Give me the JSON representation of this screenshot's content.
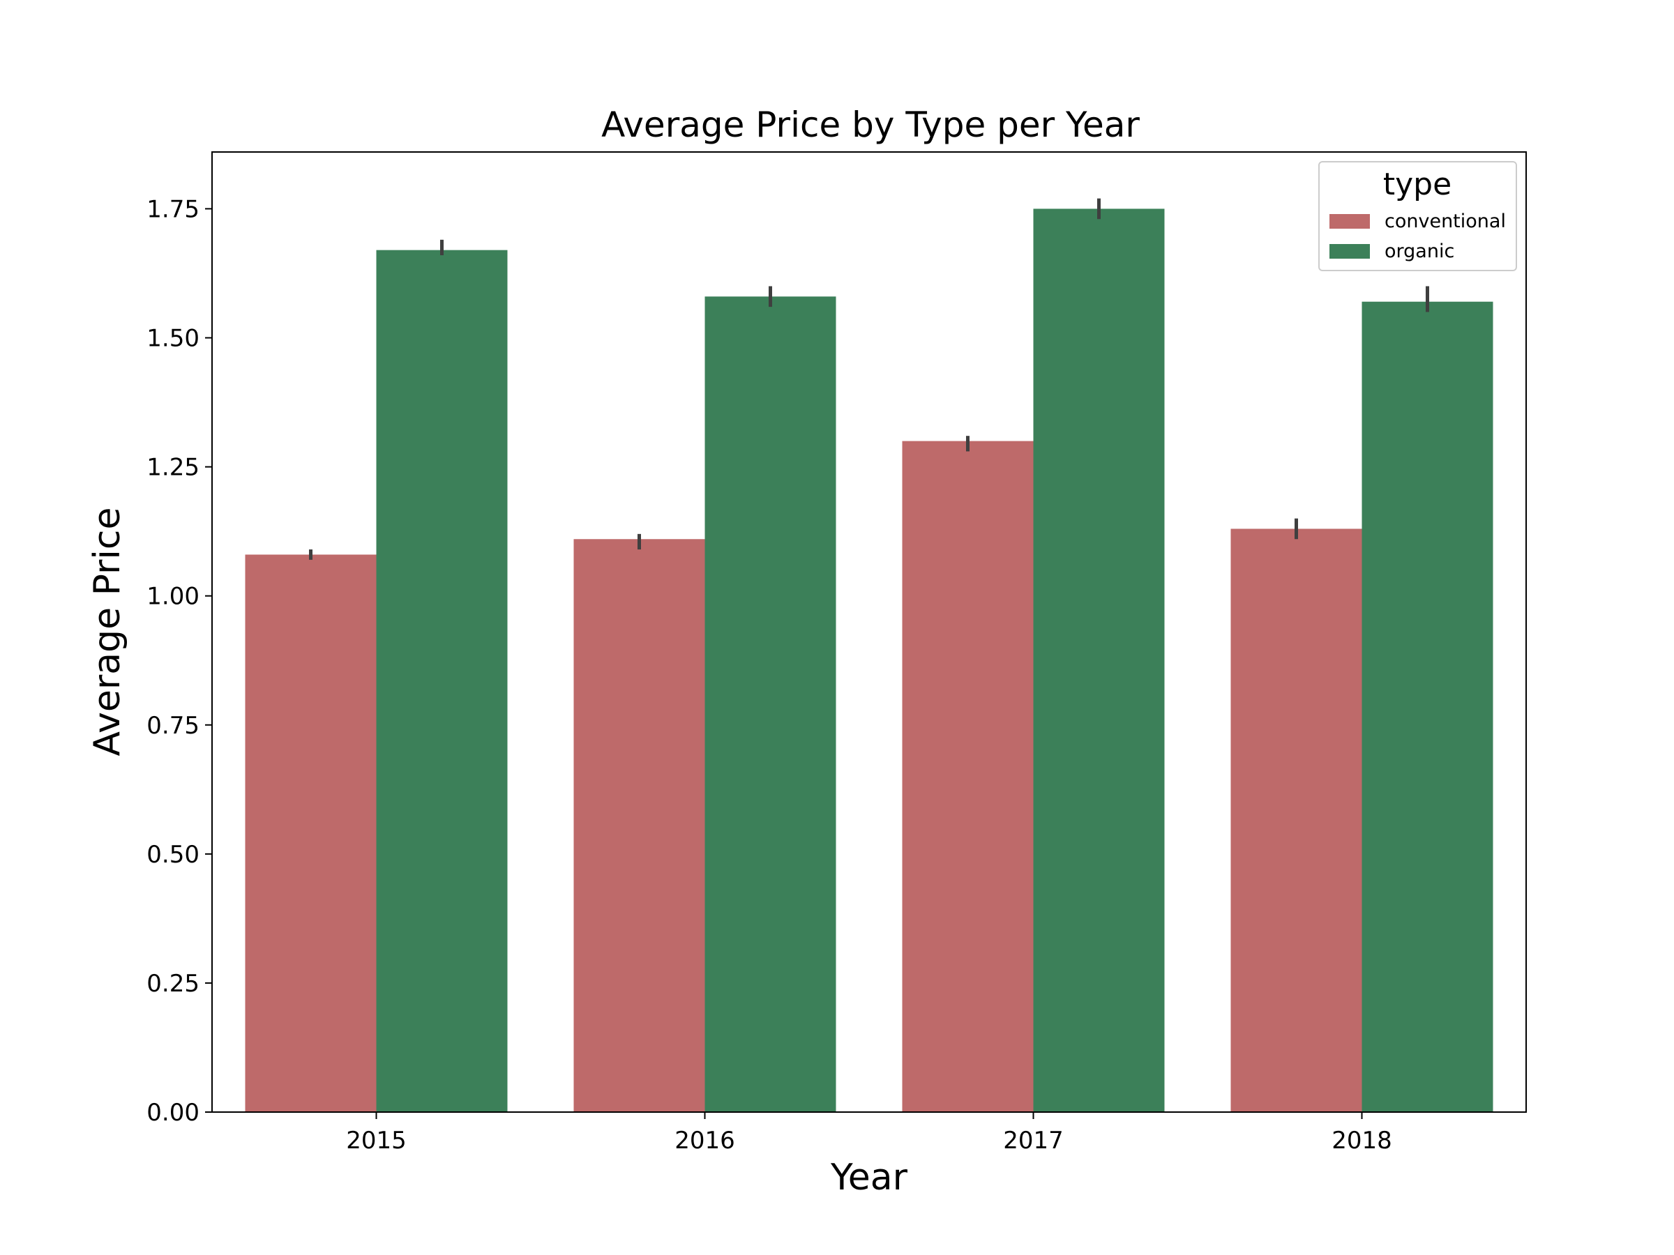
{
  "chart_data": {
    "type": "bar",
    "title": "Average Price by Type per Year",
    "xlabel": "Year",
    "ylabel": "Average Price",
    "categories": [
      "2015",
      "2016",
      "2017",
      "2018"
    ],
    "ylim": [
      0,
      1.86
    ],
    "yticks": [
      0.0,
      0.25,
      0.5,
      0.75,
      1.0,
      1.25,
      1.5,
      1.75
    ],
    "ytick_labels": [
      "0.00",
      "0.25",
      "0.50",
      "0.75",
      "1.00",
      "1.25",
      "1.50",
      "1.75"
    ],
    "grid": false,
    "legend": {
      "title": "type",
      "position": "top-right"
    },
    "series": [
      {
        "name": "conventional",
        "color": "#be6a6a",
        "values": [
          1.08,
          1.11,
          1.3,
          1.13
        ],
        "error": [
          [
            1.07,
            1.09
          ],
          [
            1.09,
            1.12
          ],
          [
            1.28,
            1.31
          ],
          [
            1.11,
            1.15
          ]
        ]
      },
      {
        "name": "organic",
        "color": "#3c8059",
        "values": [
          1.67,
          1.58,
          1.75,
          1.57
        ],
        "error": [
          [
            1.66,
            1.69
          ],
          [
            1.56,
            1.6
          ],
          [
            1.73,
            1.77
          ],
          [
            1.55,
            1.6
          ]
        ]
      }
    ],
    "errorbar_color": "#3f3f3f"
  }
}
